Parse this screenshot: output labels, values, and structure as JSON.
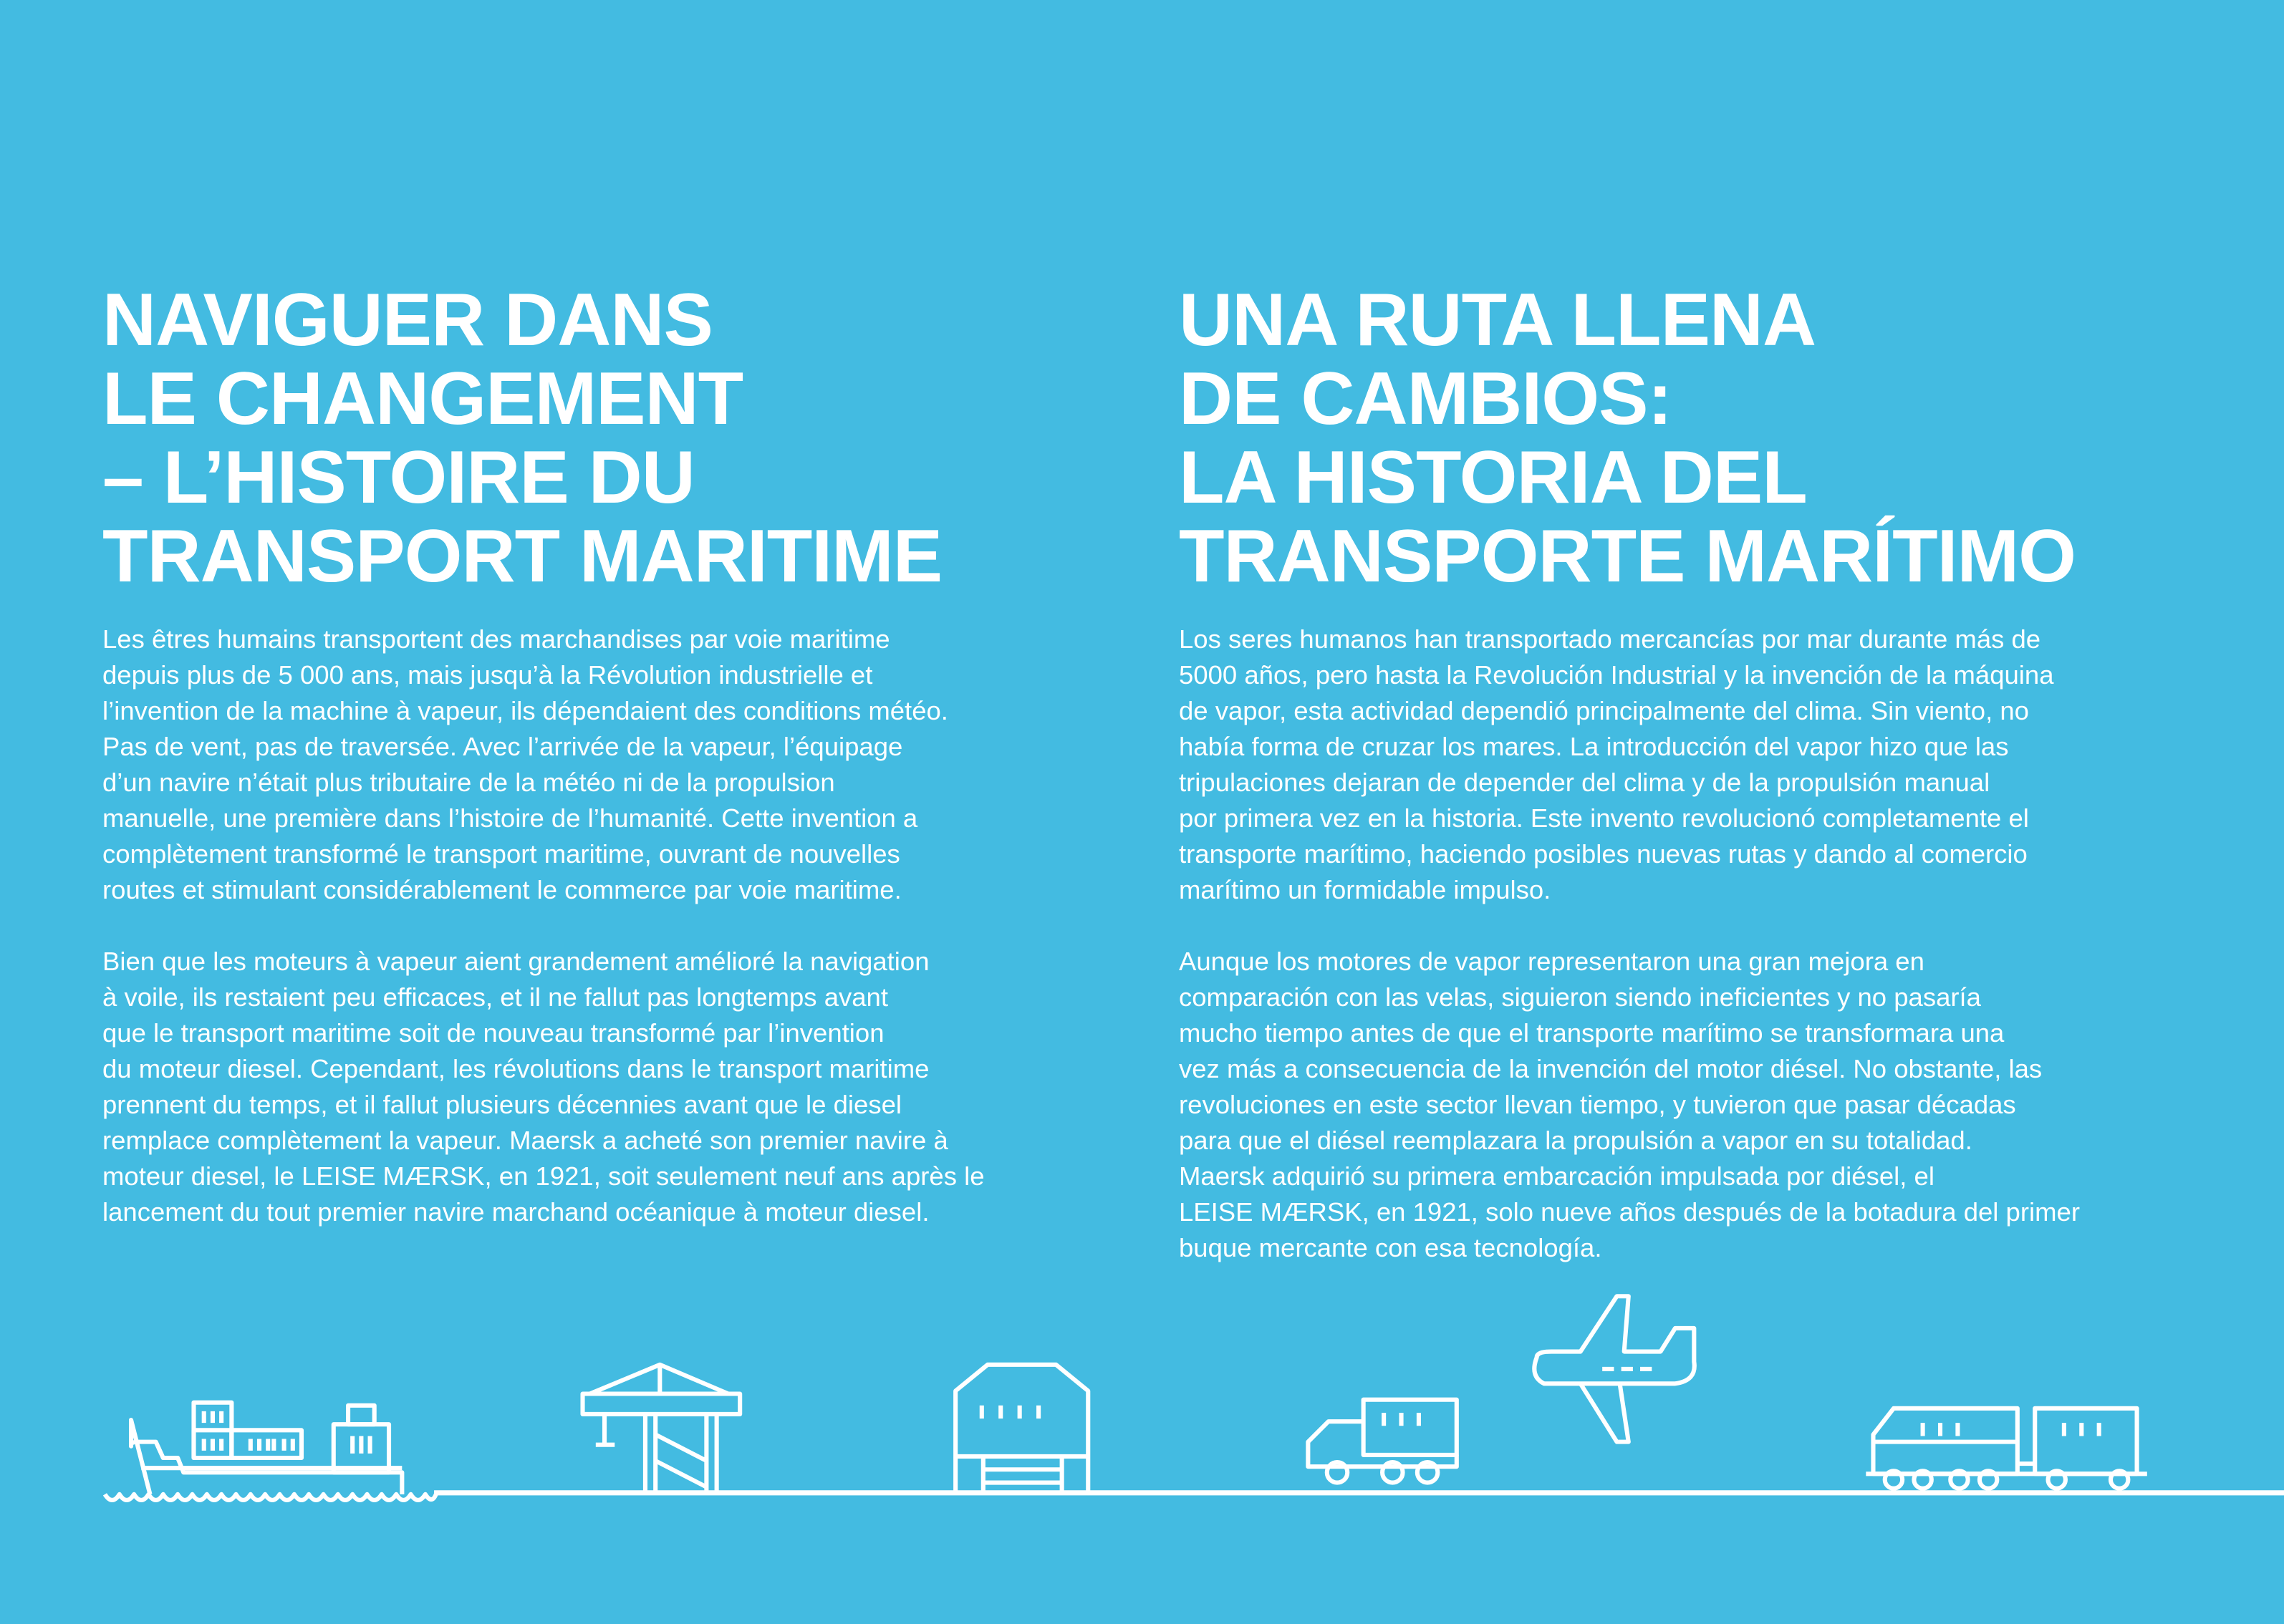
{
  "french": {
    "title": "NAVIGUER DANS\nLE CHANGEMENT\n– L’HISTOIRE DU\nTRANSPORT MARITIME",
    "paragraphs": [
      "Les êtres humains transportent des marchandises par voie maritime\ndepuis plus de 5 000 ans, mais jusqu’à la Révolution industrielle et\nl’invention de la machine à vapeur, ils dépendaient des conditions météo.\nPas de vent, pas de traversée. Avec l’arrivée de la vapeur, l’équipage\nd’un navire n’était plus tributaire de la météo ni de la propulsion\nmanuelle, une première dans l’histoire de l’humanité. Cette invention a\ncomplètement transformé le transport maritime, ouvrant de nouvelles\nroutes et stimulant considérablement le commerce par voie maritime.",
      "Bien que les moteurs à vapeur aient grandement amélioré la navigation\nà voile, ils restaient peu efficaces, et il ne fallut pas longtemps avant\nque le transport maritime soit de nouveau transformé par l’invention\ndu moteur diesel. Cependant, les révolutions dans le transport maritime\nprennent du temps, et il fallut plusieurs décennies avant que le diesel\nremplace complètement la vapeur. Maersk a acheté son premier navire à\nmoteur diesel, le LEISE MÆRSK, en 1921, soit seulement neuf ans après le\nlancement du tout premier navire marchand océanique à moteur diesel."
    ]
  },
  "spanish": {
    "title": "UNA RUTA LLENA\nDE CAMBIOS:\nLA HISTORIA DEL\nTRANSPORTE MARÍTIMO",
    "paragraphs": [
      "Los seres humanos han transportado mercancías por mar durante más de\n5000 años, pero hasta la Revolución Industrial y la invención de la máquina\nde vapor, esta actividad dependió principalmente del clima. Sin viento, no\nhabía forma de cruzar los mares. La introducción del vapor hizo que las\ntripulaciones dejaran de depender del clima y de la propulsión manual\npor primera vez en la historia. Este invento revolucionó completamente el\ntransporte marítimo, haciendo posibles nuevas rutas y dando al comercio\nmarítimo un formidable impulso.",
      "Aunque los motores de vapor representaron una gran mejora en\ncomparación con las velas, siguieron siendo ineficientes y no pasaría\nmucho tiempo antes de que el transporte marítimo se transformara una\nvez más a consecuencia de la invención del motor diésel. No obstante, las\nrevoluciones en este sector llevan tiempo, y tuvieron que pasar décadas\npara que el diésel reemplazara la propulsión a vapor en su totalidad.\nMaersk adquirió su primera embarcación impulsada por diésel, el\nLEISE MÆRSK, en 1921, solo nueve años después de la botadura del primer\nbuque mercante con esa tecnología."
    ]
  },
  "illustration": {
    "icons": [
      "container-ship-icon",
      "port-crane-icon",
      "warehouse-icon",
      "truck-icon",
      "airplane-icon",
      "train-icon"
    ]
  },
  "colors": {
    "background": "#43BBE1",
    "foreground": "#FFFFFF"
  }
}
